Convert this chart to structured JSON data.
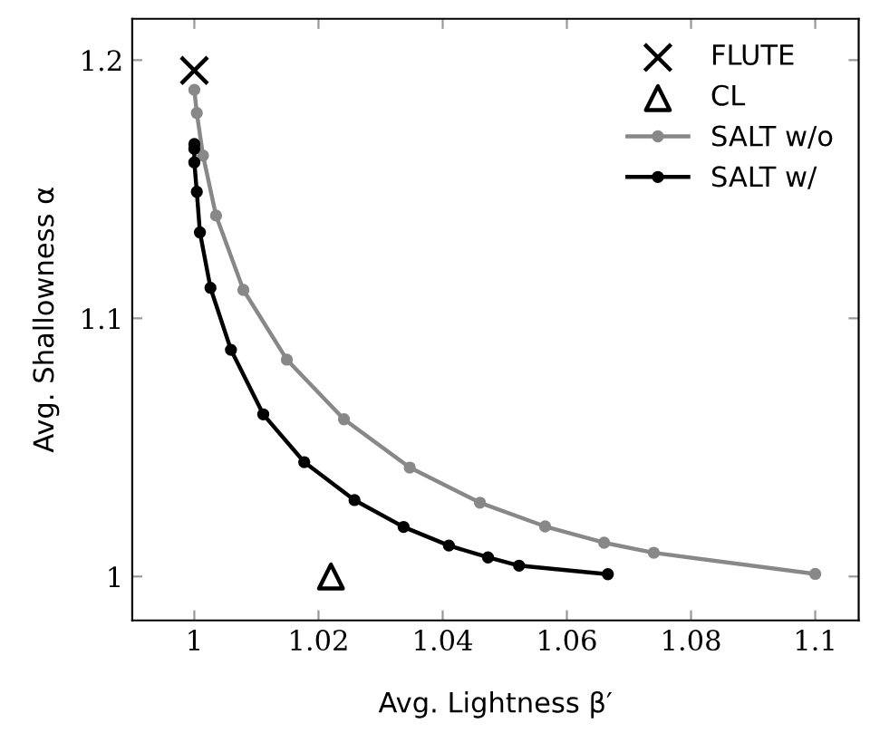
{
  "chart_data": {
    "type": "line",
    "xlabel": "Avg. Lightness β′",
    "ylabel": "Avg. Shallowness α",
    "xlim": [
      0.99,
      1.107
    ],
    "ylim": [
      0.983,
      1.216
    ],
    "xticks": [
      1,
      1.02,
      1.04,
      1.06,
      1.08,
      1.1
    ],
    "yticks": [
      1,
      1.1,
      1.2
    ],
    "grid": false,
    "legend": "top right",
    "series": [
      {
        "name": "FLUTE",
        "type": "scatter",
        "marker": "cross",
        "color": "#000000",
        "x": [
          1.0
        ],
        "values": [
          1.196
        ]
      },
      {
        "name": "CL",
        "type": "scatter",
        "marker": "triangle",
        "color": "#000000",
        "x": [
          1.022
        ],
        "values": [
          1.0
        ]
      },
      {
        "name": "SALT w/o",
        "marker": "circle",
        "color": "#888888",
        "x": [
          1.0,
          1.0004,
          1.0014,
          1.0035,
          1.0079,
          1.0149,
          1.0241,
          1.0347,
          1.046,
          1.0565,
          1.066,
          1.074,
          1.1
        ],
        "values": [
          1.1885,
          1.1795,
          1.163,
          1.1398,
          1.111,
          1.084,
          1.0609,
          1.0422,
          1.0286,
          1.0194,
          1.0131,
          1.0092,
          1.001
        ]
      },
      {
        "name": "SALT w/",
        "marker": "circle",
        "color": "#000000",
        "x": [
          1.0,
          1.0,
          1.0,
          1.0004,
          1.0009,
          1.0026,
          1.0059,
          1.0111,
          1.0177,
          1.0258,
          1.0337,
          1.041,
          1.0473,
          1.0523,
          1.0666
        ],
        "values": [
          1.1675,
          1.1656,
          1.1604,
          1.149,
          1.1333,
          1.1118,
          1.0878,
          1.0628,
          1.0443,
          1.0296,
          1.0192,
          1.012,
          1.0074,
          1.0042,
          1.0009
        ]
      }
    ]
  }
}
